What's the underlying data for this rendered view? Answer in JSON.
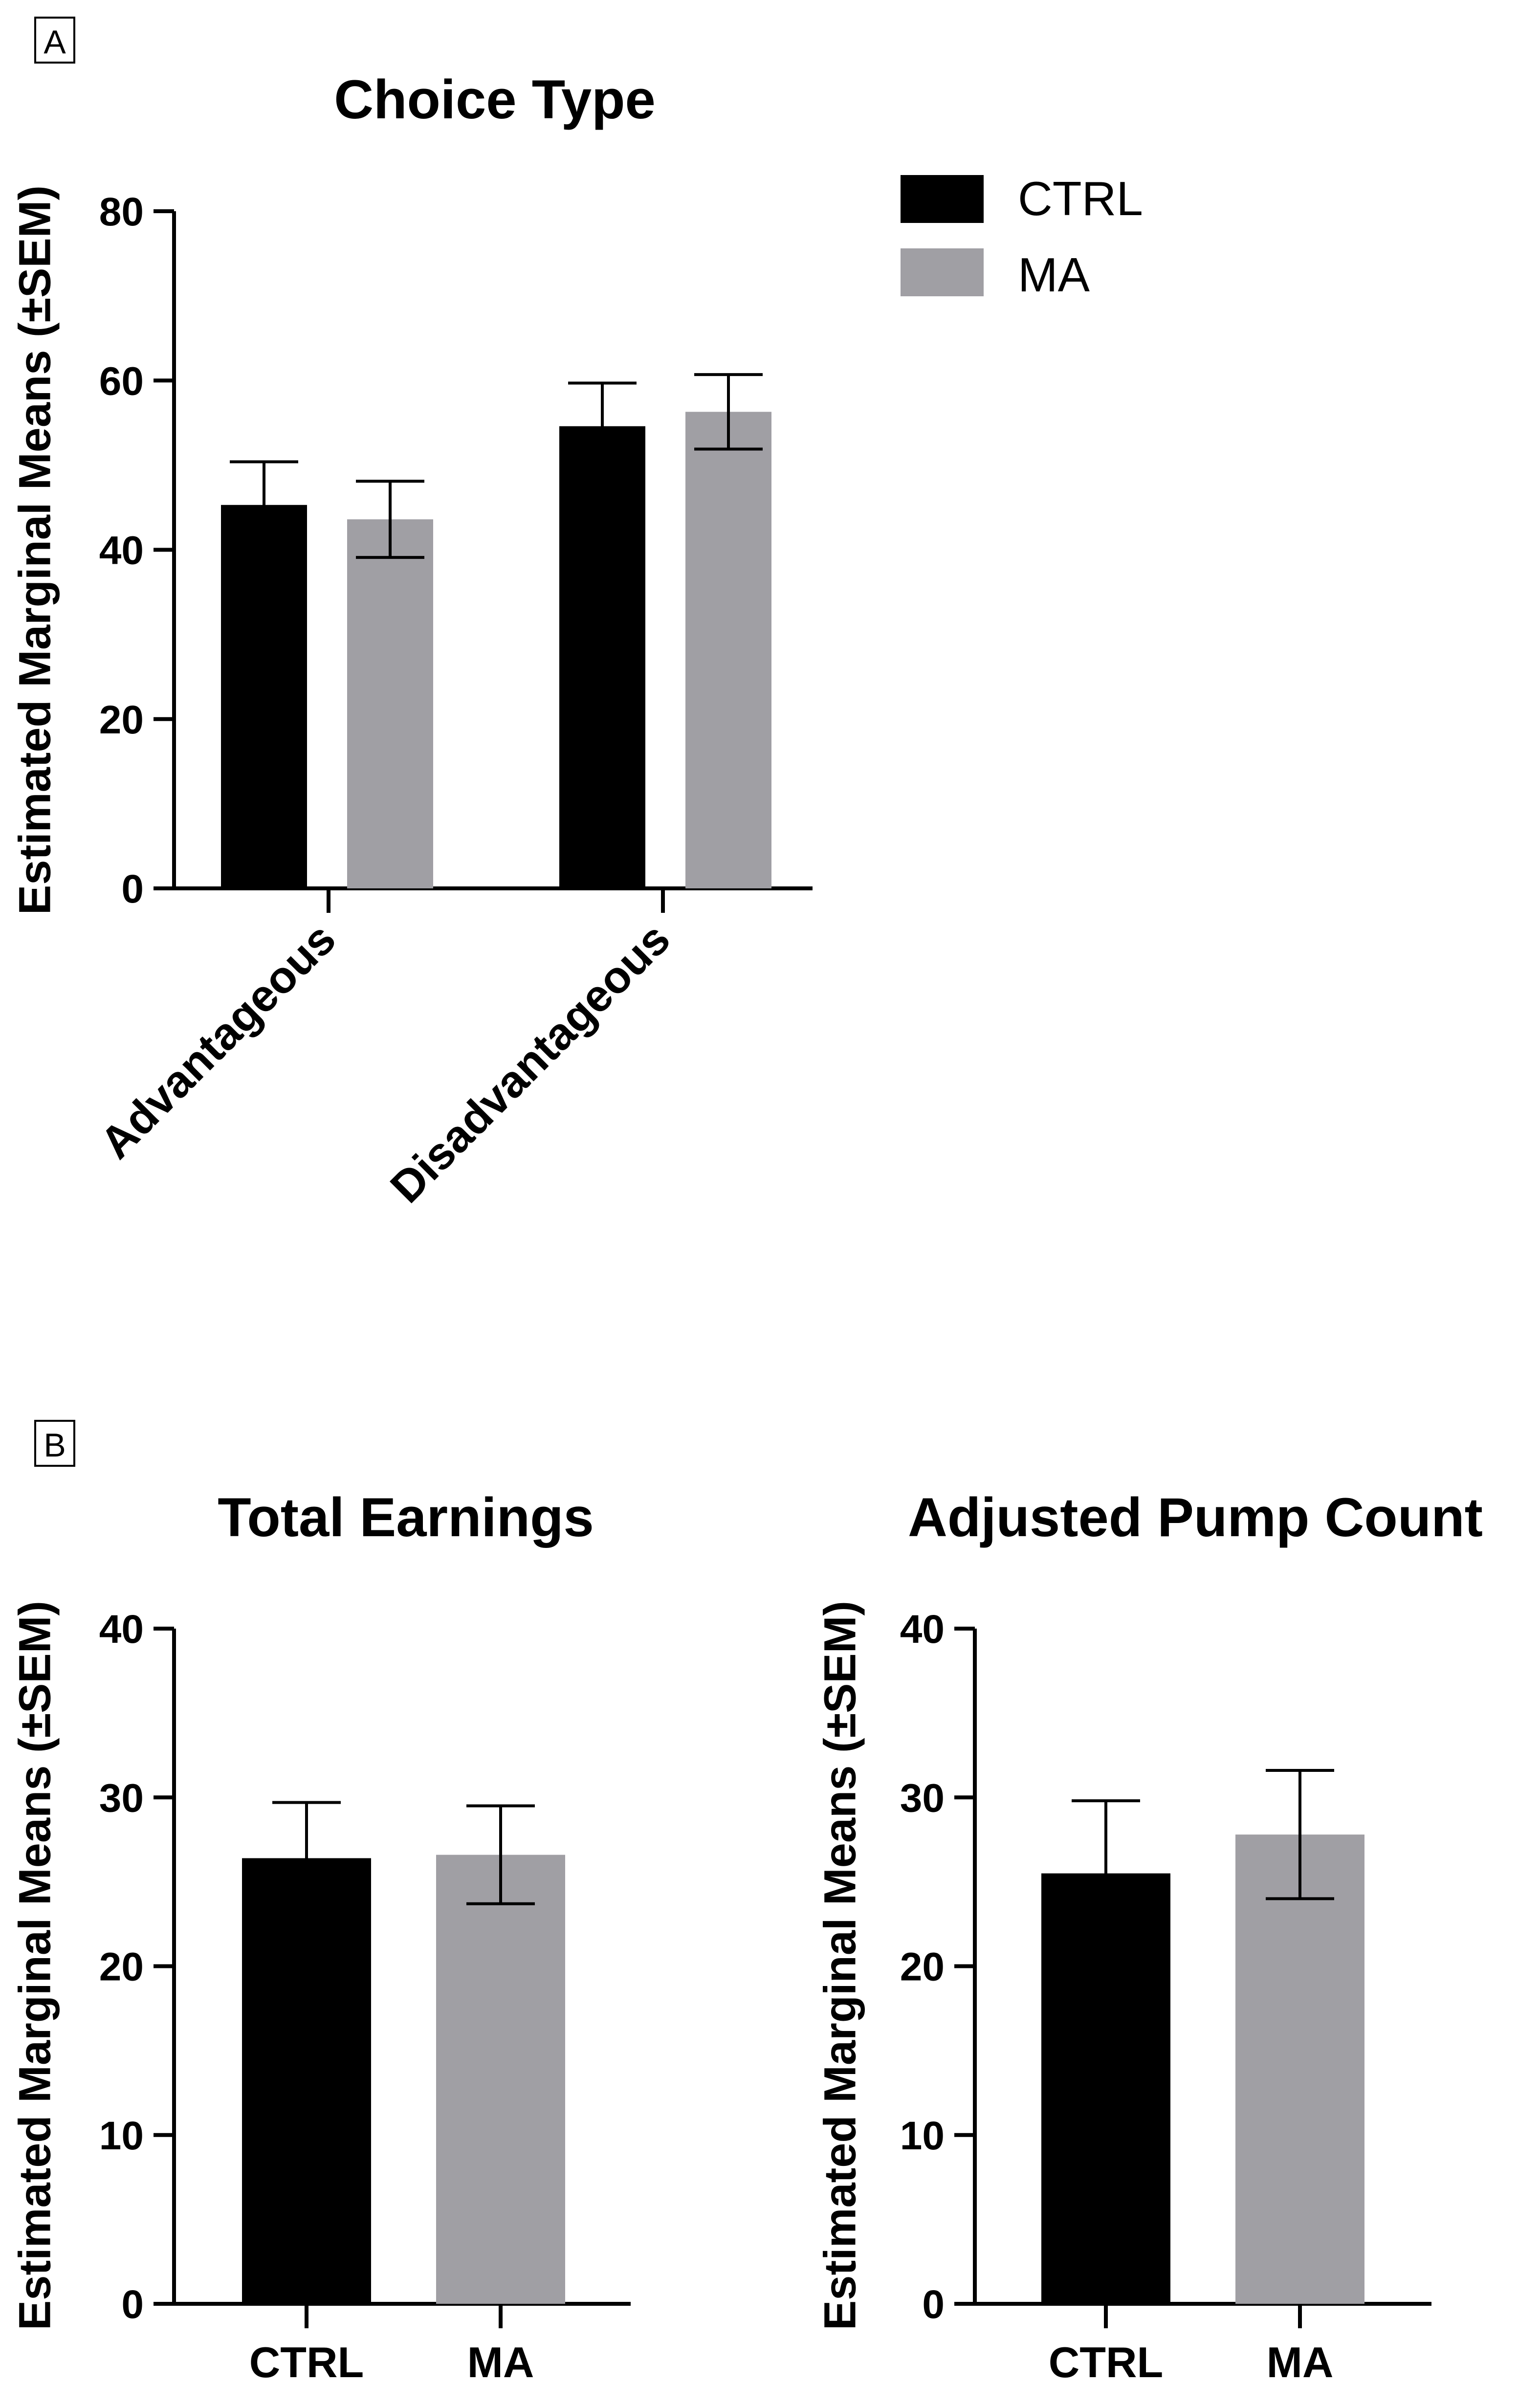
{
  "panels": {
    "a": {
      "label": "A"
    },
    "b": {
      "label": "B"
    }
  },
  "legend": {
    "items": [
      {
        "label": "CTRL",
        "color": "#000000"
      },
      {
        "label": "MA",
        "color": "#a09fa4"
      }
    ]
  },
  "chart_data": [
    {
      "type": "bar",
      "panel": "A",
      "title": "Choice Type",
      "xlabel": "",
      "ylabel": "Estimated Marginal Means (±SEM)",
      "ylim": [
        0,
        80
      ],
      "yticks": [
        "0",
        "20",
        "40",
        "60",
        "80"
      ],
      "categories": [
        "Advantageous",
        "Disadvantageous"
      ],
      "series": [
        {
          "name": "CTRL",
          "color": "#000000",
          "values": [
            45.3,
            54.6
          ],
          "sem": [
            5.1,
            5.1
          ]
        },
        {
          "name": "MA",
          "color": "#a09fa4",
          "values": [
            43.6,
            56.3
          ],
          "sem": [
            4.5,
            4.4
          ]
        }
      ],
      "legend_position": "right"
    },
    {
      "type": "bar",
      "panel": "B",
      "title": "Total Earnings",
      "xlabel": "",
      "ylabel": "Estimated Marginal Means (±SEM)",
      "ylim": [
        0,
        40
      ],
      "yticks": [
        "0",
        "10",
        "20",
        "30",
        "40"
      ],
      "categories": [
        "CTRL",
        "MA"
      ],
      "series": [
        {
          "name": "Total Earnings",
          "colors": [
            "#000000",
            "#a09fa4"
          ],
          "values": [
            26.4,
            26.6
          ],
          "sem": [
            3.3,
            2.9
          ]
        }
      ]
    },
    {
      "type": "bar",
      "panel": "B",
      "title": "Adjusted Pump Count",
      "xlabel": "",
      "ylabel": "Estimated Marginal Means (±SEM)",
      "ylim": [
        0,
        40
      ],
      "yticks": [
        "0",
        "10",
        "20",
        "30",
        "40"
      ],
      "categories": [
        "CTRL",
        "MA"
      ],
      "series": [
        {
          "name": "Adjusted Pump Count",
          "colors": [
            "#000000",
            "#a09fa4"
          ],
          "values": [
            25.5,
            27.8
          ],
          "sem": [
            4.3,
            3.8
          ]
        }
      ]
    }
  ]
}
